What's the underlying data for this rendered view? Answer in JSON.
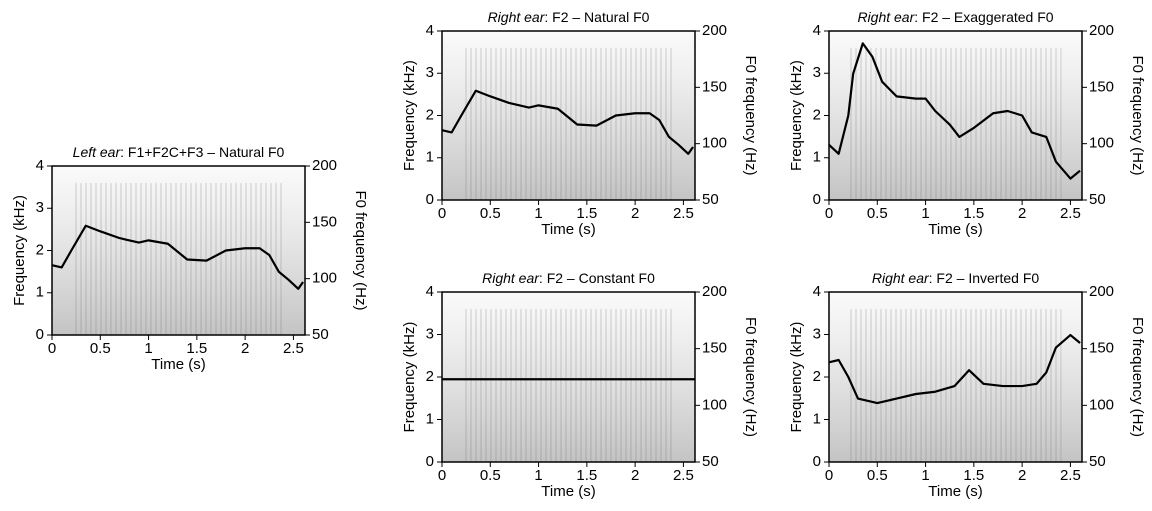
{
  "chart_data": [
    {
      "type": "line",
      "ear": "Left ear",
      "title": ": F1+F2C+F3 – Natural F0",
      "xlabel": "Time (s)",
      "ylabel": "Frequency (kHz)",
      "y2label": "F0 frequency (Hz)",
      "xlim": [
        0,
        2.62
      ],
      "xticks": [
        0,
        0.5,
        1,
        1.5,
        2,
        2.5
      ],
      "ylim": [
        0,
        4
      ],
      "yticks": [
        0,
        1,
        2,
        3,
        4
      ],
      "y2lim": [
        50,
        200
      ],
      "y2ticks": [
        50,
        100,
        150,
        200
      ],
      "series": [
        {
          "color": "#000000",
          "axis": "y2",
          "x": [
            0,
            0.1,
            0.2,
            0.35,
            0.5,
            0.7,
            0.9,
            1.0,
            1.2,
            1.4,
            1.6,
            1.8,
            2.0,
            2.15,
            2.25,
            2.35,
            2.45,
            2.55,
            2.6
          ],
          "values": [
            112,
            110,
            125,
            147,
            142,
            136,
            132,
            134,
            131,
            117,
            116,
            125,
            127,
            127,
            121,
            106,
            99,
            91,
            97
          ]
        }
      ]
    },
    {
      "type": "line",
      "ear": "Right ear",
      "title": ": F2 – Natural F0",
      "xlabel": "Time (s)",
      "ylabel": "Frequency (kHz)",
      "y2label": "F0 frequency (Hz)",
      "xlim": [
        0,
        2.62
      ],
      "xticks": [
        0,
        0.5,
        1,
        1.5,
        2,
        2.5
      ],
      "ylim": [
        0,
        4
      ],
      "yticks": [
        0,
        1,
        2,
        3,
        4
      ],
      "y2lim": [
        50,
        200
      ],
      "y2ticks": [
        50,
        100,
        150,
        200
      ],
      "series": [
        {
          "color": "#000000",
          "axis": "y2",
          "x": [
            0,
            0.1,
            0.2,
            0.35,
            0.5,
            0.7,
            0.9,
            1.0,
            1.2,
            1.4,
            1.6,
            1.8,
            2.0,
            2.15,
            2.25,
            2.35,
            2.45,
            2.55,
            2.6
          ],
          "values": [
            112,
            110,
            125,
            147,
            142,
            136,
            132,
            134,
            131,
            117,
            116,
            125,
            127,
            127,
            121,
            106,
            99,
            91,
            97
          ]
        }
      ]
    },
    {
      "type": "line",
      "ear": "Right ear",
      "title": ": F2 – Exaggerated F0",
      "xlabel": "Time (s)",
      "ylabel": "Frequency (kHz)",
      "y2label": "F0 frequency (Hz)",
      "xlim": [
        0,
        2.62
      ],
      "xticks": [
        0,
        0.5,
        1,
        1.5,
        2,
        2.5
      ],
      "ylim": [
        0,
        4
      ],
      "yticks": [
        0,
        1,
        2,
        3,
        4
      ],
      "y2lim": [
        50,
        200
      ],
      "y2ticks": [
        50,
        100,
        150,
        200
      ],
      "series": [
        {
          "color": "#000000",
          "axis": "y2",
          "x": [
            0,
            0.1,
            0.2,
            0.25,
            0.35,
            0.45,
            0.55,
            0.7,
            0.9,
            1.0,
            1.1,
            1.25,
            1.35,
            1.5,
            1.7,
            1.85,
            2.0,
            2.1,
            2.25,
            2.35,
            2.5,
            2.6
          ],
          "values": [
            99,
            91,
            125,
            162,
            189,
            177,
            155,
            142,
            140,
            140,
            129,
            117,
            106,
            114,
            127,
            129,
            125,
            110,
            106,
            84,
            69,
            76
          ]
        }
      ]
    },
    {
      "type": "line",
      "ear": "Right ear",
      "title": ": F2 – Constant F0",
      "xlabel": "Time (s)",
      "ylabel": "Frequency (kHz)",
      "y2label": "F0 frequency (Hz)",
      "xlim": [
        0,
        2.62
      ],
      "xticks": [
        0,
        0.5,
        1,
        1.5,
        2,
        2.5
      ],
      "ylim": [
        0,
        4
      ],
      "yticks": [
        0,
        1,
        2,
        3,
        4
      ],
      "y2lim": [
        50,
        200
      ],
      "y2ticks": [
        50,
        100,
        150,
        200
      ],
      "series": [
        {
          "color": "#000000",
          "axis": "y2",
          "x": [
            0,
            2.62
          ],
          "values": [
            123,
            123
          ]
        }
      ]
    },
    {
      "type": "line",
      "ear": "Right ear",
      "title": ": F2 – Inverted F0",
      "xlabel": "Time (s)",
      "ylabel": "Frequency (kHz)",
      "y2label": "F0 frequency (Hz)",
      "xlim": [
        0,
        2.62
      ],
      "xticks": [
        0,
        0.5,
        1,
        1.5,
        2,
        2.5
      ],
      "ylim": [
        0,
        4
      ],
      "yticks": [
        0,
        1,
        2,
        3,
        4
      ],
      "y2lim": [
        50,
        200
      ],
      "y2ticks": [
        50,
        100,
        150,
        200
      ],
      "series": [
        {
          "color": "#000000",
          "axis": "y2",
          "x": [
            0,
            0.1,
            0.2,
            0.3,
            0.5,
            0.7,
            0.9,
            1.1,
            1.3,
            1.45,
            1.6,
            1.8,
            2.0,
            2.15,
            2.25,
            2.35,
            2.5,
            2.6
          ],
          "values": [
            138,
            140,
            125,
            106,
            102,
            106,
            110,
            112,
            117,
            131,
            119,
            117,
            117,
            119,
            129,
            151,
            162,
            155
          ]
        }
      ]
    }
  ]
}
